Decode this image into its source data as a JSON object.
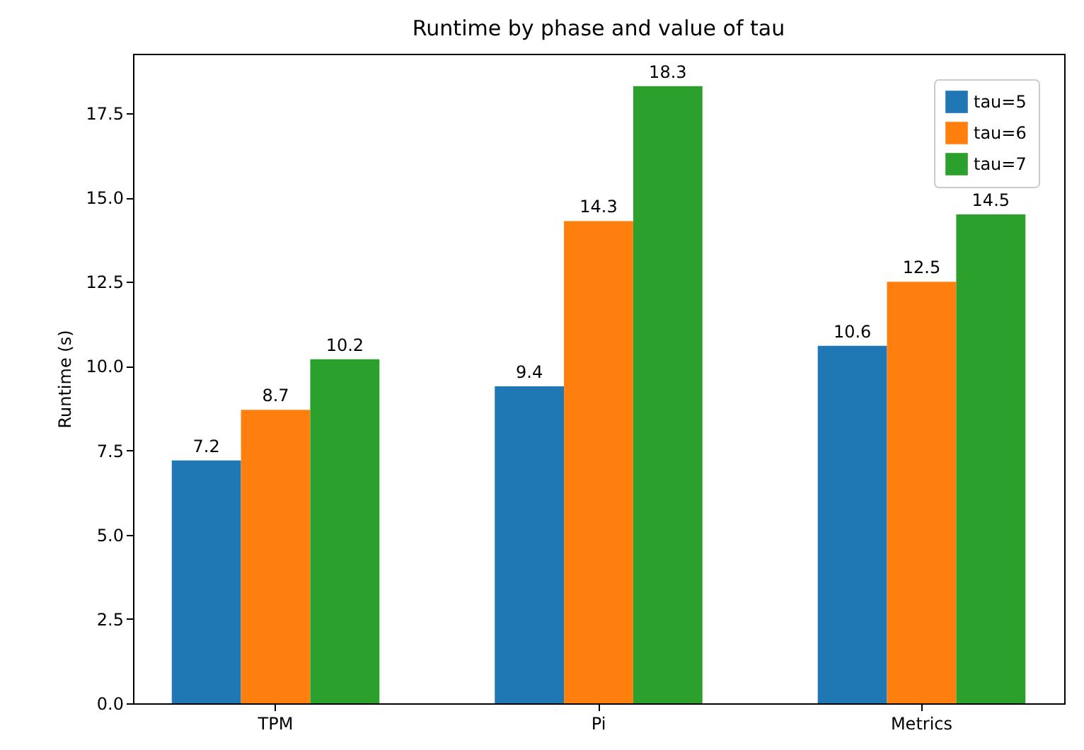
{
  "chart_data": {
    "type": "bar",
    "title": "Runtime by phase and value of tau",
    "ylabel": "Runtime (s)",
    "categories": [
      "TPM",
      "Pi",
      "Metrics"
    ],
    "series": [
      {
        "name": "tau=5",
        "color": "#1f77b4",
        "values": [
          7.2,
          9.4,
          10.6
        ]
      },
      {
        "name": "tau=6",
        "color": "#ff7f0e",
        "values": [
          8.7,
          14.3,
          12.5
        ]
      },
      {
        "name": "tau=7",
        "color": "#2ca02c",
        "values": [
          10.2,
          18.3,
          14.5
        ]
      }
    ],
    "ylim": [
      0,
      19.26
    ],
    "yticks": [
      {
        "value": 0,
        "label": "0.0"
      },
      2.5,
      {
        "value": 5,
        "label": "5.0"
      },
      7.5,
      {
        "value": 10,
        "label": "10.0"
      },
      12.5,
      {
        "value": 15,
        "label": "15.0"
      },
      17.5
    ],
    "data_labels": true,
    "legend": "top right",
    "grid": false
  }
}
